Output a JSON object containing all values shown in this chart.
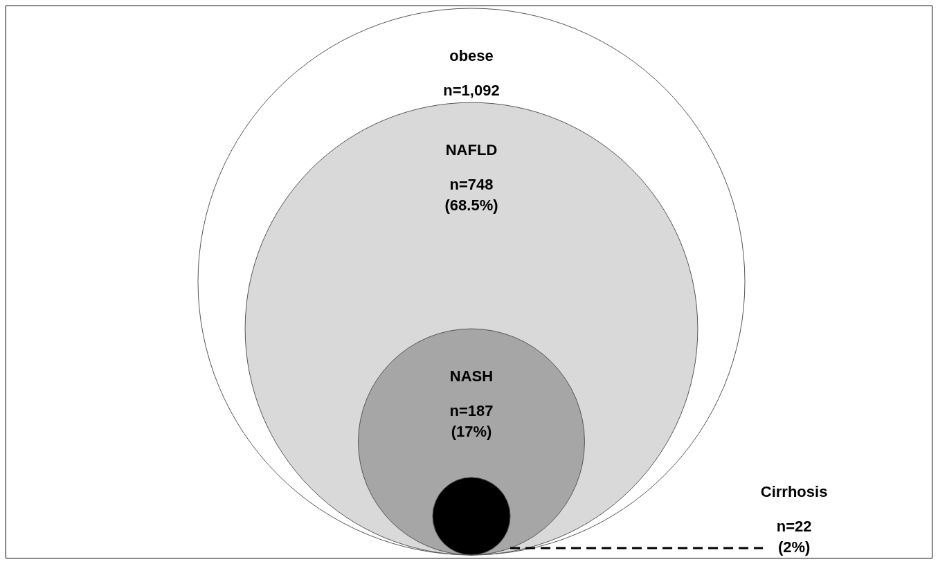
{
  "chart_data": {
    "type": "other",
    "categories": [
      "obese",
      "NAFLD",
      "NASH",
      "Cirrhosis"
    ],
    "values": [
      1092,
      748,
      187,
      22
    ],
    "value_labels": [
      "n=1,092",
      "n=748\n(68.5%)",
      "n=187\n(17%)",
      "n=22\n(2%)"
    ],
    "colors": [
      "#ffffff",
      "#d9d9d9",
      "#a6a6a6",
      "#000000"
    ]
  }
}
